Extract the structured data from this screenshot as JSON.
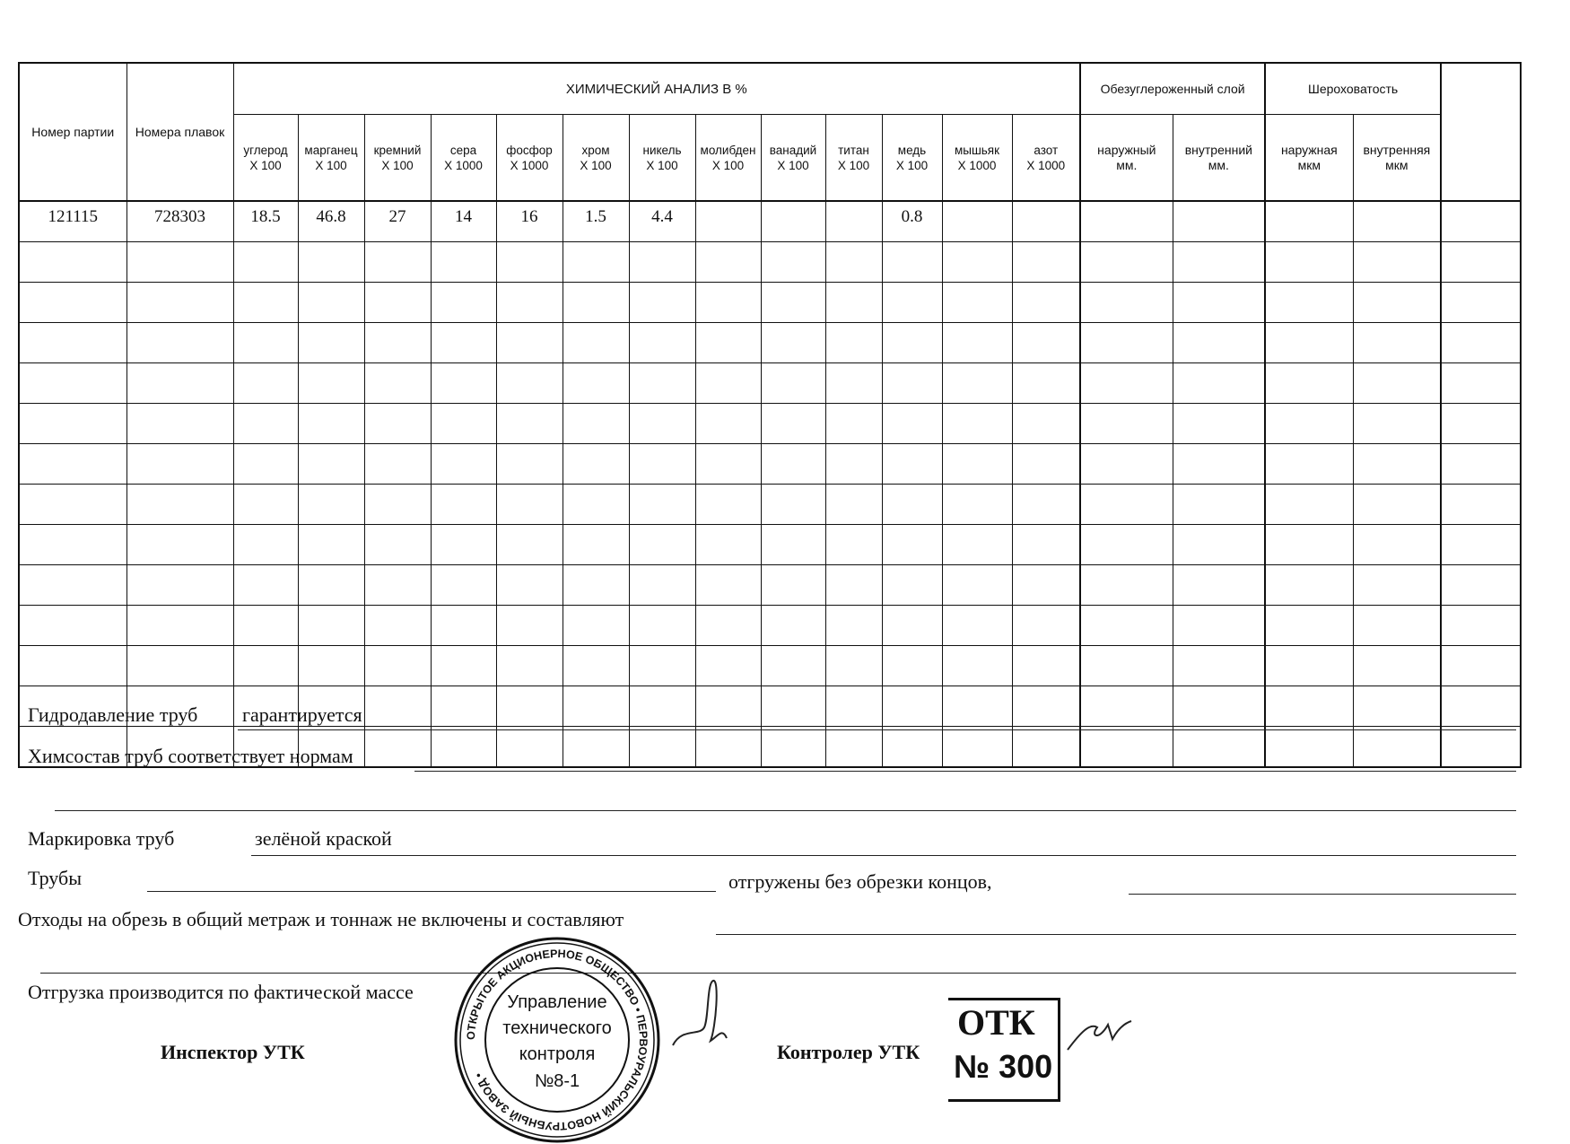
{
  "table": {
    "col_partiya": "Номер партии",
    "col_plavki": "Номера плавок",
    "group_chem": "ХИМИЧЕСКИЙ АНАЛИЗ  В  %",
    "group_decarb": "Обезуглероженный слой",
    "group_rough": "Шероховатость",
    "chem_columns": [
      {
        "name": "углерод",
        "mult": "Х 100"
      },
      {
        "name": "марганец",
        "mult": "Х 100"
      },
      {
        "name": "кремний",
        "mult": "Х 100"
      },
      {
        "name": "сера",
        "mult": "Х 1000"
      },
      {
        "name": "фосфор",
        "mult": "Х 1000"
      },
      {
        "name": "хром",
        "mult": "Х 100"
      },
      {
        "name": "никель",
        "mult": "Х 100"
      },
      {
        "name": "молибден",
        "mult": "Х 100"
      },
      {
        "name": "ванадий",
        "mult": "Х 100"
      },
      {
        "name": "титан",
        "mult": "Х 100"
      },
      {
        "name": "медь",
        "mult": "Х 100"
      },
      {
        "name": "мышьяк",
        "mult": "Х 1000"
      },
      {
        "name": "азот",
        "mult": "Х 1000"
      }
    ],
    "decarb_columns": [
      {
        "name": "наружный",
        "unit": "мм."
      },
      {
        "name": "внутренний",
        "unit": "мм."
      }
    ],
    "rough_columns": [
      {
        "name": "наружная",
        "unit": "мкм"
      },
      {
        "name": "внутренняя",
        "unit": "мкм"
      }
    ],
    "rows": [
      [
        "121115",
        "728303",
        "18.5",
        "46.8",
        "27",
        "14",
        "16",
        "1.5",
        "4.4",
        "",
        "",
        "",
        "0.8",
        "",
        "",
        "",
        "",
        "",
        "",
        ""
      ],
      [
        "",
        "",
        "",
        "",
        "",
        "",
        "",
        "",
        "",
        "",
        "",
        "",
        "",
        "",
        "",
        "",
        "",
        "",
        "",
        ""
      ],
      [
        "",
        "",
        "",
        "",
        "",
        "",
        "",
        "",
        "",
        "",
        "",
        "",
        "",
        "",
        "",
        "",
        "",
        "",
        "",
        ""
      ],
      [
        "",
        "",
        "",
        "",
        "",
        "",
        "",
        "",
        "",
        "",
        "",
        "",
        "",
        "",
        "",
        "",
        "",
        "",
        "",
        ""
      ],
      [
        "",
        "",
        "",
        "",
        "",
        "",
        "",
        "",
        "",
        "",
        "",
        "",
        "",
        "",
        "",
        "",
        "",
        "",
        "",
        ""
      ],
      [
        "",
        "",
        "",
        "",
        "",
        "",
        "",
        "",
        "",
        "",
        "",
        "",
        "",
        "",
        "",
        "",
        "",
        "",
        "",
        ""
      ],
      [
        "",
        "",
        "",
        "",
        "",
        "",
        "",
        "",
        "",
        "",
        "",
        "",
        "",
        "",
        "",
        "",
        "",
        "",
        "",
        ""
      ],
      [
        "",
        "",
        "",
        "",
        "",
        "",
        "",
        "",
        "",
        "",
        "",
        "",
        "",
        "",
        "",
        "",
        "",
        "",
        "",
        ""
      ],
      [
        "",
        "",
        "",
        "",
        "",
        "",
        "",
        "",
        "",
        "",
        "",
        "",
        "",
        "",
        "",
        "",
        "",
        "",
        "",
        ""
      ],
      [
        "",
        "",
        "",
        "",
        "",
        "",
        "",
        "",
        "",
        "",
        "",
        "",
        "",
        "",
        "",
        "",
        "",
        "",
        "",
        ""
      ],
      [
        "",
        "",
        "",
        "",
        "",
        "",
        "",
        "",
        "",
        "",
        "",
        "",
        "",
        "",
        "",
        "",
        "",
        "",
        "",
        ""
      ],
      [
        "",
        "",
        "",
        "",
        "",
        "",
        "",
        "",
        "",
        "",
        "",
        "",
        "",
        "",
        "",
        "",
        "",
        "",
        "",
        ""
      ],
      [
        "",
        "",
        "",
        "",
        "",
        "",
        "",
        "",
        "",
        "",
        "",
        "",
        "",
        "",
        "",
        "",
        "",
        "",
        "",
        ""
      ],
      [
        "",
        "",
        "",
        "",
        "",
        "",
        "",
        "",
        "",
        "",
        "",
        "",
        "",
        "",
        "",
        "",
        "",
        "",
        "",
        ""
      ]
    ]
  },
  "form": {
    "hydro_label": "Гидродавление труб",
    "hydro_value": "гарантируется",
    "chem_label": "Химсостав труб соответствует нормам",
    "marking_label": "Маркировка труб",
    "marking_value": "зелёной краской",
    "pipes_label": "Трубы",
    "pipes_shipped": "отгружены без обрезки концов,",
    "waste_label": "Отходы на обрезь в общий метраж и тоннаж не включены и составляют",
    "shipping_label": "Отгрузка производится по фактической массе",
    "inspector_label": "Инспектор УТК",
    "controller_label": "Контролер УТК"
  },
  "stamp": {
    "ring_text": "ОТКРЫТОЕ АКЦИОНЕРНОЕ ОБЩЕСТВО • ПЕРВОУРАЛЬСКИЙ НОВОТРУБНЫЙ ЗАВОД •",
    "line1": "Управление",
    "line2": "технического",
    "line3": "контроля",
    "line4": "№8-1"
  },
  "otk_stamp": {
    "line1": "ОТК",
    "line2": "№ 300"
  }
}
